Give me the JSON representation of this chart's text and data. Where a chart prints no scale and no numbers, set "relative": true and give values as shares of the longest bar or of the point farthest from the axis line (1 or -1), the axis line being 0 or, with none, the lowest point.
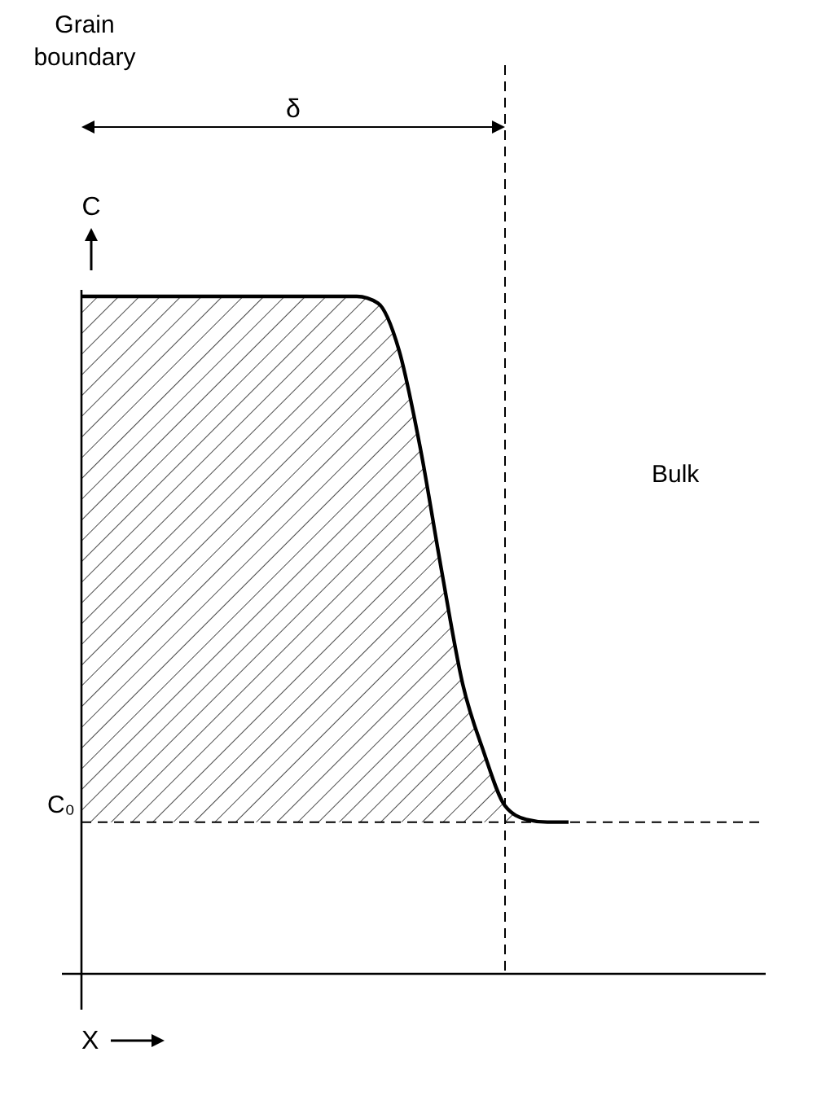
{
  "chart_data": {
    "type": "line",
    "relative": true,
    "title": "Grain boundary",
    "xlabel": "X",
    "ylabel": "C",
    "categories": [
      null,
      null,
      null,
      null,
      null,
      null,
      null,
      null,
      null,
      null,
      null,
      null,
      null,
      null,
      null,
      null,
      null,
      null,
      null,
      null,
      null,
      null,
      null,
      null,
      null,
      null,
      null,
      null,
      null,
      null,
      null,
      null,
      null
    ],
    "series": [
      {
        "color": "#000000",
        "values": [
          1,
          1,
          1,
          1,
          1,
          1,
          1,
          1,
          1,
          1,
          1,
          1,
          1,
          1,
          0.99,
          0.92,
          0.776,
          0.596,
          0.428,
          0.327,
          0.248,
          0.228,
          0.224,
          0.224,
          null,
          null,
          null,
          null,
          null,
          null,
          null,
          null,
          null
        ]
      }
    ],
    "ref_lines": [
      {
        "axis": "y",
        "value": 0.224,
        "label": "C₀",
        "line_style": "dashed"
      }
    ],
    "annotations": [
      "δ",
      "Bulk"
    ]
  }
}
